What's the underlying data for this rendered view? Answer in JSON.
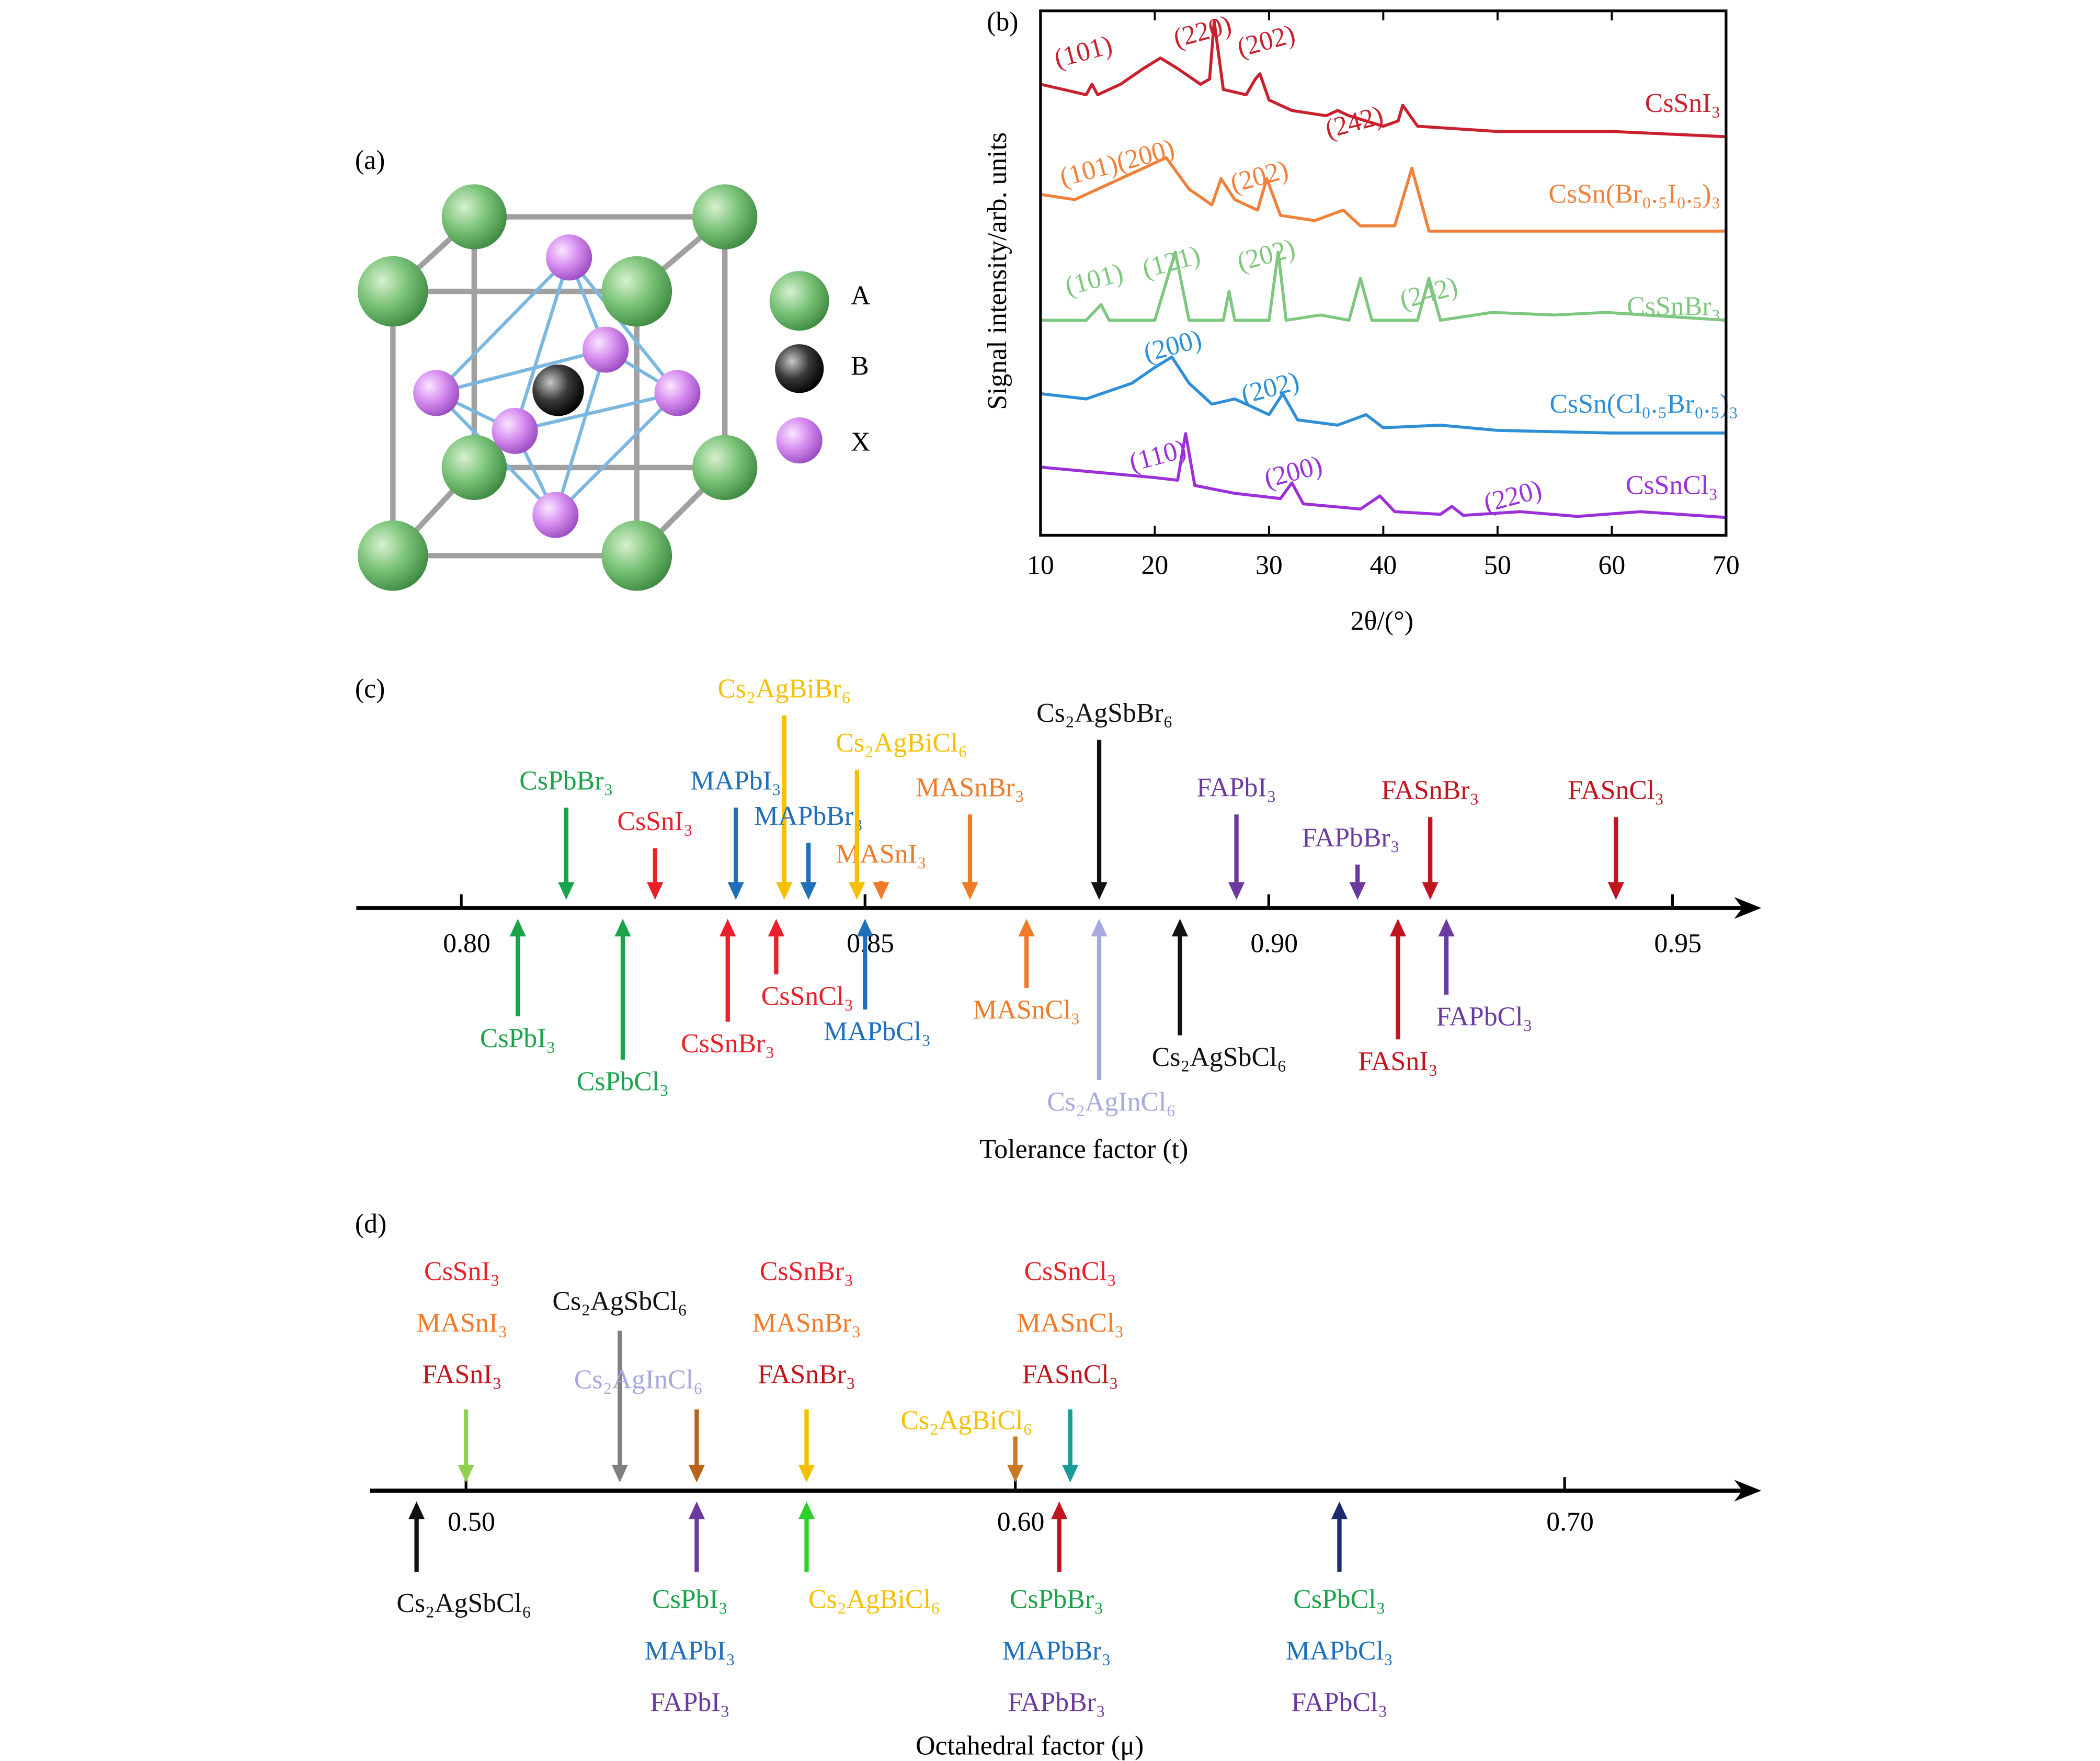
{
  "diagram": {
    "panel_label": "(a)",
    "legend": [
      "A",
      "B",
      "X"
    ]
  },
  "chart_data": [
    {
      "type": "line",
      "panel_label": "(b)",
      "x_label": "2θ/(°)",
      "y_label": "Signal intensity/arb. units",
      "xlim": [
        10,
        70
      ],
      "xticks": [
        10,
        20,
        30,
        40,
        50,
        60,
        70
      ],
      "ylim": [
        0,
        100
      ],
      "series": [
        {
          "name": "CsSnI₃",
          "color": "#c8202c",
          "peaks": [
            "(101)",
            "(220)",
            "(202)",
            "(242)"
          ],
          "x": [
            10,
            12,
            14,
            14.5,
            15,
            17,
            19,
            20.5,
            22,
            24,
            24.8,
            25.2,
            26,
            28,
            28.8,
            29.2,
            30,
            32,
            35,
            36,
            37,
            40,
            41.3,
            41.7,
            43,
            50,
            60,
            70
          ],
          "values": [
            86,
            85,
            84,
            86,
            84,
            86,
            89,
            91,
            89,
            86,
            87,
            98,
            85,
            84,
            87,
            88,
            83,
            81,
            80,
            81,
            80,
            78,
            79,
            82,
            78,
            77,
            77,
            76
          ]
        },
        {
          "name": "CsSn(Br₀.₅I₀.₅)₃",
          "color": "#f0813a",
          "peaks": [
            "(101)(200)",
            "(202)"
          ],
          "x": [
            10,
            13,
            16,
            19,
            21,
            23,
            25,
            25.8,
            27,
            29,
            29.8,
            31,
            34,
            36.5,
            38,
            41,
            42.5,
            44,
            50,
            60,
            70
          ],
          "values": [
            65,
            64,
            67,
            70,
            72,
            66,
            63,
            68,
            64,
            62,
            68,
            61,
            60,
            62,
            59,
            59,
            70,
            58,
            58,
            58,
            58
          ]
        },
        {
          "name": "CsSnBr₃",
          "color": "#7ec77e",
          "peaks": [
            "(101)",
            "(121)",
            "(202)",
            "(242)"
          ],
          "x": [
            10,
            14,
            15.3,
            16,
            20,
            21.8,
            23,
            26,
            26.5,
            27,
            30,
            30.8,
            31.5,
            34.5,
            37,
            38,
            39,
            43,
            44,
            45,
            49.5,
            55,
            59.5,
            70
          ],
          "values": [
            41,
            41,
            44,
            41,
            41,
            54,
            41,
            41,
            46.5,
            41,
            41,
            54,
            41,
            42,
            41,
            49,
            41,
            41,
            49,
            41,
            42.5,
            42,
            42.5,
            41
          ]
        },
        {
          "name": "CsSn(Cl₀.₅Br₀.₅)₃",
          "color": "#2f8fd6",
          "peaks": [
            "(200)",
            "(202)"
          ],
          "x": [
            10,
            14,
            18,
            20,
            21.5,
            23,
            25,
            27,
            30,
            31.2,
            32.5,
            36,
            38.5,
            40,
            45,
            50,
            60,
            70
          ],
          "values": [
            27,
            26,
            29,
            32,
            34,
            29,
            25,
            26,
            23,
            27,
            22,
            21,
            23,
            20.5,
            21,
            20,
            19.5,
            19.5
          ]
        },
        {
          "name": "CsSnCl₃",
          "color": "#9b30d9",
          "peaks": [
            "(110)",
            "(200)",
            "(220)"
          ],
          "x": [
            10,
            15,
            20,
            22,
            22.7,
            23.5,
            27,
            31,
            32,
            33,
            38,
            39.7,
            41,
            45,
            46,
            47,
            52,
            57,
            62.5,
            70
          ],
          "values": [
            13,
            12,
            11,
            10.5,
            19.4,
            9.5,
            8,
            7,
            10,
            6,
            5,
            7.5,
            4.5,
            4,
            5.5,
            3.8,
            4.5,
            3.6,
            4.5,
            3.4
          ]
        }
      ]
    },
    {
      "type": "arrow",
      "panel_label": "(c)",
      "x_label": "Tolerance factor (t)",
      "xlim": [
        0.787,
        0.961
      ],
      "xticks": [
        {
          "value": 0.8,
          "label": "0.80"
        },
        {
          "value": 0.85,
          "label": "0.85"
        },
        {
          "value": 0.9,
          "label": "0.90"
        },
        {
          "value": 0.95,
          "label": "0.95"
        }
      ],
      "above": [
        {
          "labels": [
            "CsPbBr₃"
          ],
          "value": 0.813,
          "color": "#1aa34a"
        },
        {
          "labels": [
            "CsSnI₃"
          ],
          "value": 0.824,
          "color": "#e8202a"
        },
        {
          "labels": [
            "MAPbI₃"
          ],
          "value": 0.834,
          "color": "#1f6fba"
        },
        {
          "labels": [
            "Cs₂AgBiBr₆"
          ],
          "value": 0.84,
          "color": "#f5c000"
        },
        {
          "labels": [
            "MAPbBr₃"
          ],
          "value": 0.843,
          "color": "#1f6fba"
        },
        {
          "labels": [
            "MASnI₃"
          ],
          "value": 0.852,
          "color": "#f07a28"
        },
        {
          "labels": [
            "Cs₂AgBiCl₆"
          ],
          "value": 0.849,
          "color": "#f5c000"
        },
        {
          "labels": [
            "MASnBr₃"
          ],
          "value": 0.863,
          "color": "#f07a28"
        },
        {
          "labels": [
            "Cs₂AgSbBr₆"
          ],
          "value": 0.879,
          "color": "#111111"
        },
        {
          "labels": [
            "FAPbI₃"
          ],
          "value": 0.896,
          "color": "#6b3aa0"
        },
        {
          "labels": [
            "FAPbBr₃"
          ],
          "value": 0.911,
          "color": "#6b3aa0"
        },
        {
          "labels": [
            "FASnBr₃"
          ],
          "value": 0.92,
          "color": "#c0141e"
        },
        {
          "labels": [
            "FASnCl₃"
          ],
          "value": 0.943,
          "color": "#c0141e"
        }
      ],
      "below": [
        {
          "labels": [
            "CsPbI₃"
          ],
          "value": 0.807,
          "color": "#1aa34a"
        },
        {
          "labels": [
            "CsPbCl₃"
          ],
          "value": 0.82,
          "color": "#1aa34a"
        },
        {
          "labels": [
            "CsSnBr₃"
          ],
          "value": 0.833,
          "color": "#e8202a"
        },
        {
          "labels": [
            "CsSnCl₃"
          ],
          "value": 0.839,
          "color": "#e8202a"
        },
        {
          "labels": [
            "MAPbCl₃"
          ],
          "value": 0.85,
          "color": "#1f6fba"
        },
        {
          "labels": [
            "MASnCl₃"
          ],
          "value": 0.87,
          "color": "#f07a28"
        },
        {
          "labels": [
            "Cs₂AgInCl₆"
          ],
          "value": 0.879,
          "color": "#a8a8e0"
        },
        {
          "labels": [
            "Cs₂AgSbCl₆"
          ],
          "value": 0.889,
          "color": "#111111"
        },
        {
          "labels": [
            "FASnI₃"
          ],
          "value": 0.916,
          "color": "#c0141e"
        },
        {
          "labels": [
            "FAPbCl₃"
          ],
          "value": 0.922,
          "color": "#6b3aa0"
        }
      ]
    },
    {
      "type": "arrow",
      "panel_label": "(d)",
      "x_label": "Octahedral factor (μ)",
      "xlim": [
        0.4825,
        0.7358
      ],
      "xticks": [
        {
          "value": 0.5,
          "label": "0.50"
        },
        {
          "value": 0.6,
          "label": "0.60"
        },
        {
          "value": 0.7,
          "label": "0.70"
        }
      ],
      "above": [
        {
          "labels": [
            "CsSnI₃",
            "MASnI₃",
            "FASnI₃"
          ],
          "label_colors": [
            "#e8202a",
            "#f07a28",
            "#c0141e"
          ],
          "value": 0.5,
          "color": "#8fd14f"
        },
        {
          "labels": [
            "Cs₂AgSbCl₆"
          ],
          "label_colors": [
            "#111111"
          ],
          "value": 0.528,
          "color": "#808080"
        },
        {
          "labels": [
            "Cs₂AgInCl₆"
          ],
          "label_colors": [
            "#a8a8e0"
          ],
          "value": 0.542,
          "color": "#b8651a"
        },
        {
          "labels": [
            "CsSnBr₃",
            "MASnBr₃",
            "FASnBr₃"
          ],
          "label_colors": [
            "#e8202a",
            "#f07a28",
            "#c0141e"
          ],
          "value": 0.562,
          "color": "#f5c000"
        },
        {
          "labels": [
            "Cs₂AgBiCl₆"
          ],
          "label_colors": [
            "#f5c000"
          ],
          "value": 0.6,
          "color": "#c87a20"
        },
        {
          "labels": [
            "CsSnCl₃",
            "MASnCl₃",
            "FASnCl₃"
          ],
          "label_colors": [
            "#e8202a",
            "#f07a28",
            "#c0141e"
          ],
          "value": 0.61,
          "color": "#1a9a9a"
        }
      ],
      "below": [
        {
          "labels": [
            "Cs₂AgSbCl₆"
          ],
          "label_colors": [
            "#111111"
          ],
          "value": 0.491,
          "color": "#111111"
        },
        {
          "labels": [
            "CsPbI₃",
            "MAPbI₃",
            "FAPbI₃"
          ],
          "label_colors": [
            "#1aa34a",
            "#1f6fba",
            "#6b3aa0"
          ],
          "value": 0.542,
          "color": "#6b3aa0"
        },
        {
          "labels": [
            "Cs₂AgBiCl₆"
          ],
          "label_colors": [
            "#f5c000"
          ],
          "value": 0.562,
          "color": "#2bd02b"
        },
        {
          "labels": [
            "CsPbBr₃",
            "MAPbBr₃",
            "FAPbBr₃"
          ],
          "label_colors": [
            "#1aa34a",
            "#1f6fba",
            "#6b3aa0"
          ],
          "value": 0.608,
          "color": "#c0141e"
        },
        {
          "labels": [
            "CsPbCl₃",
            "MAPbCl₃",
            "FAPbCl₃"
          ],
          "label_colors": [
            "#1aa34a",
            "#1f6fba",
            "#6b3aa0"
          ],
          "value": 0.659,
          "color": "#1a2a6a"
        }
      ]
    }
  ]
}
